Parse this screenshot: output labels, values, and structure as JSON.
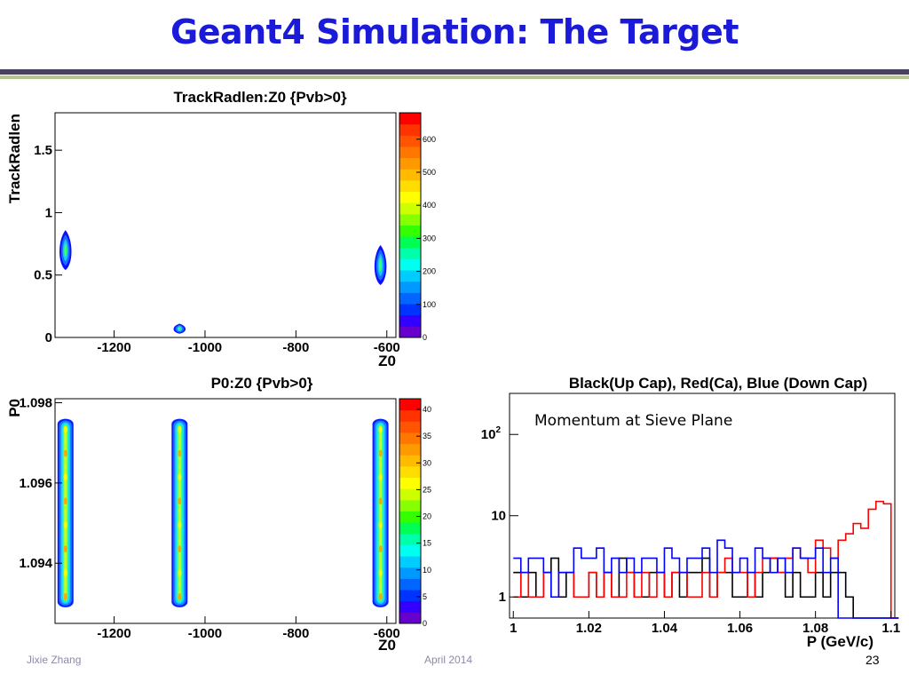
{
  "slide": {
    "title": "Geant4 Simulation: The Target",
    "footer_left": "Jixie Zhang",
    "footer_center": "April 2014",
    "page_number": "23"
  },
  "colors": {
    "title": "#1a1ad8",
    "palette": [
      "#6600cc",
      "#3300ff",
      "#0033ff",
      "#0066ff",
      "#0099ff",
      "#00ccff",
      "#00ffee",
      "#00ffaa",
      "#00ff55",
      "#33ff00",
      "#88ff00",
      "#ccff00",
      "#ffff00",
      "#ffdd00",
      "#ffbb00",
      "#ff9900",
      "#ff7700",
      "#ff5500",
      "#ff3300",
      "#ff0000"
    ]
  },
  "chart_data": [
    {
      "type": "heatmap",
      "title": "TrackRadlen:Z0 {Pvb>0}",
      "xlabel": "Z0",
      "ylabel": "TrackRadlen",
      "xlim": [
        -1330,
        -580
      ],
      "ylim": [
        0,
        1.8
      ],
      "xticks": [
        "-1200",
        "-1000",
        "-800",
        "-600"
      ],
      "yticks": [
        "0",
        "0.5",
        "1",
        "1.5"
      ],
      "color_scale_ticks": [
        "0",
        "100",
        "200",
        "300",
        "400",
        "500",
        "600"
      ],
      "color_scale_max": 680,
      "blobs": [
        {
          "z0": -1307,
          "center": 0.7,
          "half_height": 0.16
        },
        {
          "z0": -1056,
          "center": 0.07,
          "half_height": 0.04
        },
        {
          "z0": -614,
          "center": 0.58,
          "half_height": 0.16
        }
      ]
    },
    {
      "type": "heatmap",
      "title": "P0:Z0 {Pvb>0}",
      "xlabel": "Z0",
      "ylabel": "P0",
      "xlim": [
        -1330,
        -580
      ],
      "ylim": [
        1.0925,
        1.0981
      ],
      "xticks": [
        "-1200",
        "-1000",
        "-800",
        "-600"
      ],
      "yticks": [
        "1.094",
        "1.096",
        "1.098"
      ],
      "color_scale_ticks": [
        "0",
        "5",
        "10",
        "15",
        "20",
        "25",
        "30",
        "35",
        "40"
      ],
      "color_scale_max": 42,
      "bands": [
        {
          "z0": -1307,
          "p0_min": 1.0929,
          "p0_max": 1.0976
        },
        {
          "z0": -1056,
          "p0_min": 1.0929,
          "p0_max": 1.0976
        },
        {
          "z0": -614,
          "p0_min": 1.0929,
          "p0_max": 1.0976
        }
      ]
    },
    {
      "type": "line",
      "title": "Black(Up Cap), Red(Ca), Blue (Down Cap)",
      "xlabel": "P (GeV/c)",
      "ylabel": "",
      "annotation": "Momentum at Sieve Plane",
      "xlim": [
        0.999,
        1.101
      ],
      "ylim": [
        0.55,
        320
      ],
      "log_y": true,
      "xticks": [
        "1",
        "1.02",
        "1.04",
        "1.06",
        "1.08",
        "1.1"
      ],
      "yticks": [
        {
          "label": "1",
          "value": 1
        },
        {
          "label": "10",
          "value": 10
        },
        {
          "label": "10",
          "sup": "2",
          "value": 100
        }
      ],
      "x_start": 1.0,
      "bin_width": 0.002,
      "series": [
        {
          "color": "#000000",
          "values": [
            2,
            1,
            2,
            1,
            2,
            3,
            1,
            2,
            1,
            1,
            2,
            1,
            2,
            1,
            3,
            2,
            1,
            1,
            2,
            2,
            1,
            2,
            1,
            2,
            2,
            3,
            1,
            2,
            2,
            1,
            1,
            2,
            1,
            2,
            3,
            2,
            1,
            2,
            1,
            1,
            2,
            1,
            2,
            2,
            1,
            0,
            0,
            0,
            0,
            0,
            0
          ]
        },
        {
          "color": "#ff0000",
          "values": [
            1,
            2,
            1,
            1,
            2,
            1,
            2,
            2,
            1,
            1,
            2,
            1,
            2,
            1,
            1,
            2,
            1,
            2,
            1,
            2,
            1,
            2,
            2,
            1,
            1,
            2,
            1,
            2,
            3,
            2,
            2,
            1,
            2,
            3,
            3,
            2,
            3,
            4,
            3,
            2,
            5,
            4,
            3,
            5,
            6,
            8,
            7,
            12,
            15,
            14,
            0
          ]
        },
        {
          "color": "#0000ff",
          "values": [
            3,
            2,
            3,
            3,
            2,
            1,
            2,
            2,
            4,
            3,
            3,
            4,
            2,
            3,
            2,
            3,
            2,
            3,
            3,
            2,
            4,
            3,
            2,
            3,
            3,
            4,
            2,
            5,
            4,
            2,
            3,
            2,
            4,
            3,
            2,
            3,
            2,
            4,
            3,
            3,
            4,
            2,
            3,
            0,
            0,
            0,
            0,
            0,
            0,
            0,
            0
          ]
        }
      ]
    }
  ]
}
